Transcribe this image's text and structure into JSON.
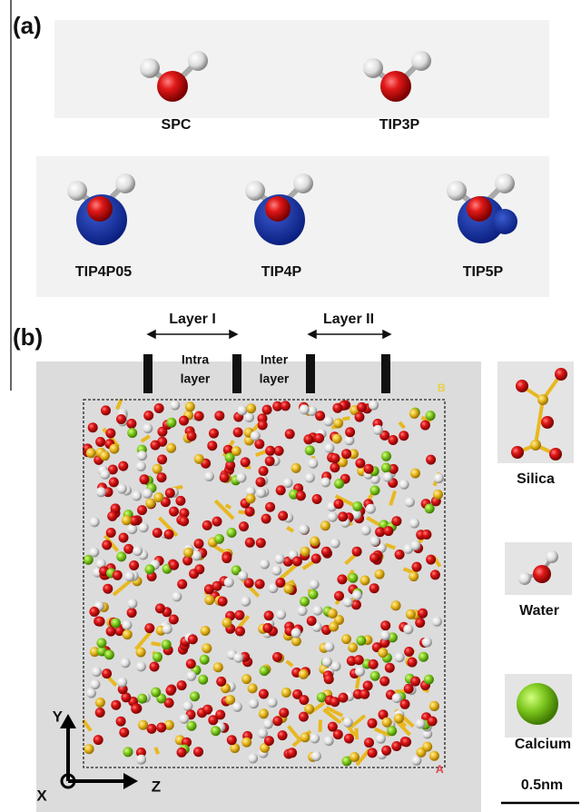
{
  "panel_a": {
    "label": "(a)",
    "models": [
      "SPC",
      "TIP3P",
      "TIP4P05",
      "TIP4P",
      "TIP5P"
    ]
  },
  "panel_b": {
    "label": "(b)",
    "layers": [
      "Layer I",
      "Layer II"
    ],
    "regions": [
      [
        "Intra",
        "layer"
      ],
      [
        "Inter",
        "layer"
      ]
    ],
    "legend": [
      "Silica",
      "Water",
      "Calcium"
    ],
    "scale_bar": "0.5nm",
    "axes": [
      "Y",
      "X",
      "Z"
    ],
    "box_corners": [
      "A",
      "B"
    ]
  }
}
